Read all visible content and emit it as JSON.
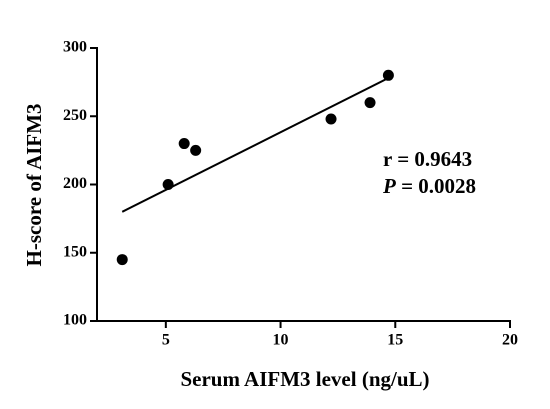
{
  "chart_data": {
    "type": "scatter",
    "x_label": "Serum AIFM3 level (ng/uL)",
    "y_label": "H-score of AIFM3",
    "x": [
      3.1,
      5.1,
      5.8,
      6.3,
      12.2,
      13.9,
      14.7
    ],
    "y": [
      145,
      200,
      230,
      225,
      248,
      260,
      280
    ],
    "color": "#000000",
    "trend_line": {
      "x": [
        3.1,
        14.7
      ],
      "y": [
        180,
        278
      ]
    },
    "xlim": [
      2,
      20
    ],
    "xticks": [
      5,
      10,
      15,
      20
    ],
    "ylim": [
      100,
      300
    ],
    "yticks": [
      100,
      150,
      200,
      250,
      300
    ],
    "annotations": [
      [
        "r = 0.9643"
      ],
      [
        "P",
        " = 0.0028"
      ]
    ]
  }
}
